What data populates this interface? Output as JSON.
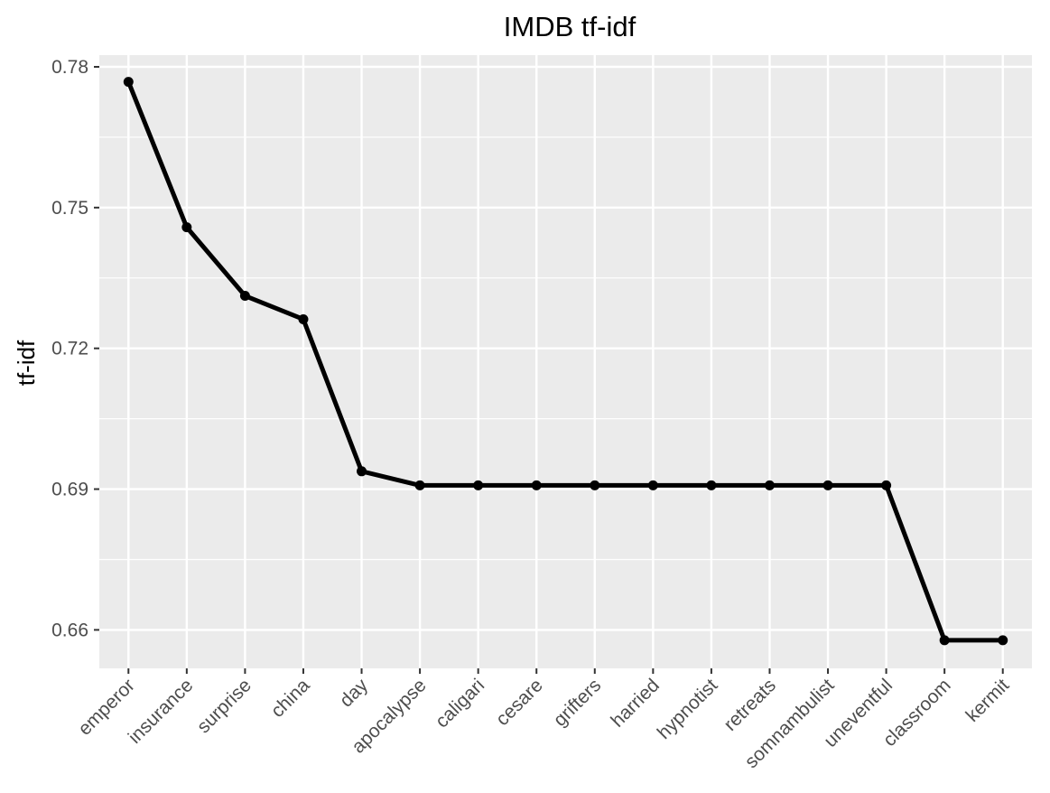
{
  "chart_data": {
    "type": "line",
    "title": "IMDB tf-idf",
    "xlabel": "",
    "ylabel": "tf-idf",
    "categories": [
      "emperor",
      "insurance",
      "surprise",
      "china",
      "day",
      "apocalypse",
      "caligari",
      "cesare",
      "grifters",
      "harried",
      "hypnotist",
      "retreats",
      "somnambulist",
      "uneventful",
      "classroom",
      "kermit"
    ],
    "values": [
      0.7768,
      0.7458,
      0.7312,
      0.7262,
      0.6938,
      0.6908,
      0.6908,
      0.6908,
      0.6908,
      0.6908,
      0.6908,
      0.6908,
      0.6908,
      0.6908,
      0.6578,
      0.6578
    ],
    "ylim": [
      0.6518,
      0.7825
    ],
    "yticks": [
      0.66,
      0.69,
      0.72,
      0.75,
      0.78
    ],
    "ytick_labels": [
      "0.66",
      "0.69",
      "0.72",
      "0.75",
      "0.78"
    ],
    "grid": true,
    "legend": "none",
    "colors": {
      "panel": "#ebebeb",
      "grid_major": "#ffffff",
      "line": "#000000",
      "tick_text": "#4d4d4d",
      "tick_mark": "#333333"
    }
  }
}
